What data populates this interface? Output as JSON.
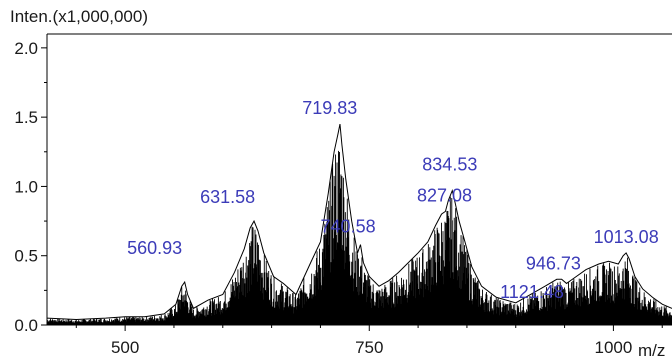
{
  "chart_data": {
    "type": "line",
    "ylabel": "Inten.(x1,000,000)",
    "xlabel": "m/z",
    "xlim": [
      420,
      1060
    ],
    "ylim": [
      0,
      2.1
    ],
    "x_ticks": [
      500,
      750,
      1000
    ],
    "x_tick_labels": [
      "500",
      "750",
      "1000"
    ],
    "y_ticks": [
      0.0,
      0.5,
      1.0,
      1.5,
      2.0
    ],
    "y_tick_labels": [
      "0.0",
      "0.5",
      "1.0",
      "1.5",
      "2.0"
    ],
    "grid": false,
    "line_color": "#000000",
    "label_color": "#3b3bb8",
    "peak_annotations": [
      {
        "x": 560.93,
        "y": 0.31,
        "label": "560.93"
      },
      {
        "x": 631.58,
        "y": 0.75,
        "label": "631.58"
      },
      {
        "x": 719.83,
        "y": 1.45,
        "label": "719.83"
      },
      {
        "x": 740.58,
        "y": 0.58,
        "label": "740.58"
      },
      {
        "x": 827.08,
        "y": 0.82,
        "label": "827.08"
      },
      {
        "x": 834.53,
        "y": 0.97,
        "label": "834.53"
      },
      {
        "x": 946.73,
        "y": 0.33,
        "label": "946.73"
      },
      {
        "x": 1013.08,
        "y": 0.52,
        "label": "1013.08"
      },
      {
        "x": 1121.48,
        "y": 0.14,
        "label": "1121.48"
      }
    ],
    "series": [
      {
        "x": [
          420,
          450,
          480,
          500,
          520,
          540,
          552,
          558,
          561,
          564,
          570,
          585,
          600,
          612,
          622,
          628,
          632,
          636,
          642,
          652,
          662,
          675,
          690,
          700,
          708,
          714,
          718,
          720,
          722,
          726,
          732,
          738,
          741,
          744,
          750,
          760,
          770,
          780,
          790,
          800,
          810,
          818,
          824,
          828,
          831,
          835,
          838,
          842,
          848,
          855,
          865,
          880,
          900,
          915,
          930,
          942,
          947,
          952,
          960,
          972,
          985,
          995,
          1005,
          1010,
          1013,
          1016,
          1022,
          1030,
          1040,
          1050,
          1060
        ],
        "y": [
          0.05,
          0.04,
          0.05,
          0.06,
          0.06,
          0.08,
          0.15,
          0.28,
          0.31,
          0.22,
          0.12,
          0.18,
          0.22,
          0.38,
          0.55,
          0.7,
          0.75,
          0.68,
          0.52,
          0.35,
          0.3,
          0.22,
          0.45,
          0.6,
          0.95,
          1.25,
          1.38,
          1.45,
          1.3,
          1.05,
          0.75,
          0.52,
          0.58,
          0.45,
          0.35,
          0.28,
          0.32,
          0.38,
          0.45,
          0.52,
          0.6,
          0.72,
          0.8,
          0.82,
          0.9,
          0.97,
          0.88,
          0.75,
          0.6,
          0.42,
          0.28,
          0.2,
          0.16,
          0.22,
          0.28,
          0.33,
          0.33,
          0.3,
          0.34,
          0.4,
          0.44,
          0.46,
          0.44,
          0.5,
          0.52,
          0.48,
          0.35,
          0.26,
          0.2,
          0.15,
          0.12
        ]
      }
    ]
  }
}
